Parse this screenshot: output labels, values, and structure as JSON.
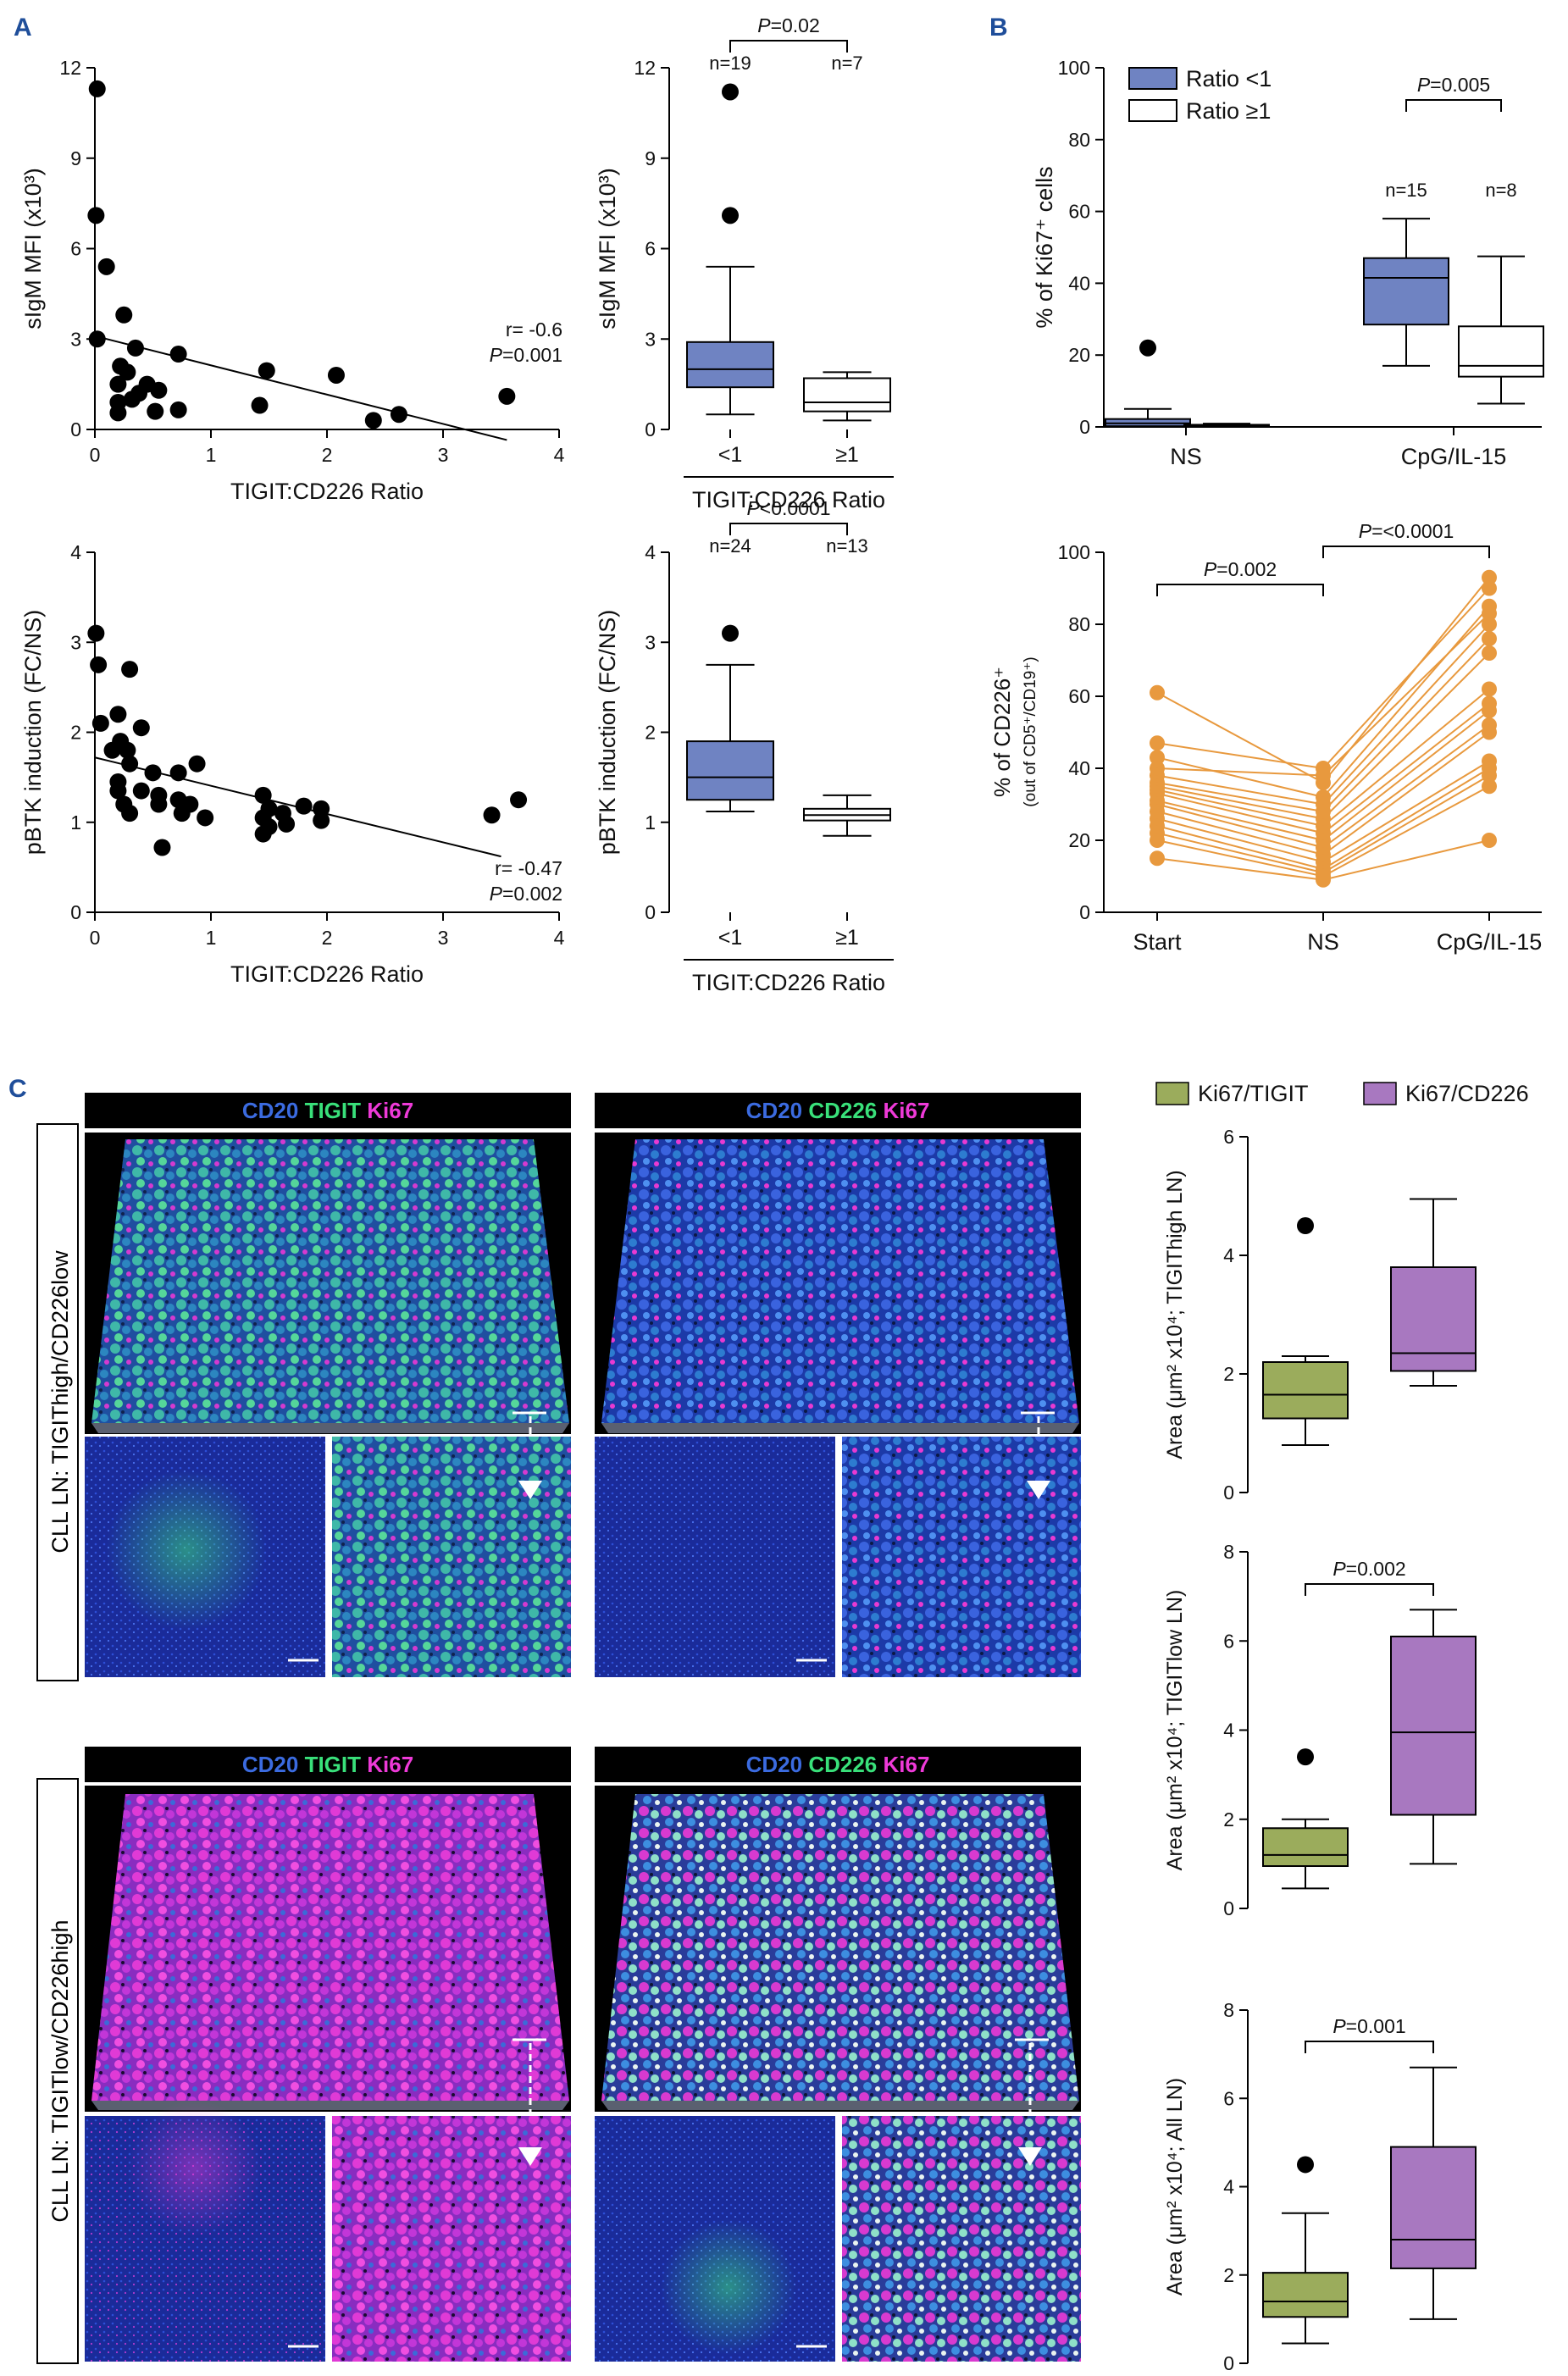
{
  "colors": {
    "panel_label": "#1f4e9a",
    "lt1_fill": "#6f83c2",
    "ge1_fill": "#ffffff",
    "orange": "#e8993e",
    "green_fill": "#9bac5c",
    "purple_fill": "#a878c0",
    "cd20": "#3b6be0",
    "tigit": "#39e07a",
    "ki67": "#ee3ad8"
  },
  "panels": {
    "a": "A",
    "b": "B",
    "c": "C"
  },
  "chart_data": [
    {
      "id": "a1",
      "type": "scatter",
      "xlabel": "TIGIT:CD226 Ratio",
      "ylabel": "sIgM MFI (x10³)",
      "xlim": [
        0,
        4
      ],
      "ylim": [
        0,
        12
      ],
      "xticks": [
        "0",
        "1",
        "2",
        "3",
        "4"
      ],
      "yticks": [
        "0",
        "3",
        "6",
        "9",
        "12"
      ],
      "points": [
        [
          0.02,
          11.3
        ],
        [
          0.01,
          7.1
        ],
        [
          0.1,
          5.4
        ],
        [
          0.02,
          3.0
        ],
        [
          0.25,
          3.8
        ],
        [
          0.35,
          2.7
        ],
        [
          0.22,
          2.1
        ],
        [
          0.28,
          1.9
        ],
        [
          0.2,
          1.5
        ],
        [
          0.45,
          1.5
        ],
        [
          0.38,
          1.2
        ],
        [
          0.55,
          1.3
        ],
        [
          0.2,
          0.9
        ],
        [
          0.32,
          1.0
        ],
        [
          0.2,
          0.55
        ],
        [
          0.52,
          0.6
        ],
        [
          0.72,
          2.5
        ],
        [
          0.72,
          0.65
        ],
        [
          1.48,
          1.95
        ],
        [
          1.42,
          0.8
        ],
        [
          2.08,
          1.8
        ],
        [
          2.4,
          0.3
        ],
        [
          2.62,
          0.5
        ],
        [
          3.55,
          1.1
        ]
      ],
      "fit": [
        [
          0,
          3.1
        ],
        [
          3.55,
          -0.35
        ]
      ],
      "annotations": [
        "r= -0.6",
        "P=0.001"
      ]
    },
    {
      "id": "a2",
      "type": "box",
      "xlabel": "TIGIT:CD226 Ratio",
      "ylabel": "sIgM MFI (x10³)",
      "ylim": [
        0,
        12
      ],
      "yticks": [
        "0",
        "3",
        "6",
        "9",
        "12"
      ],
      "categories": [
        "<1",
        "≥1"
      ],
      "n_labels": [
        "n=19",
        "n=7"
      ],
      "pvalue": "P=0.02",
      "boxes": [
        {
          "whisker_low": 0.5,
          "q1": 1.4,
          "median": 2.0,
          "q3": 2.9,
          "whisker_high": 5.4,
          "outliers": [
            7.1,
            11.2
          ]
        },
        {
          "whisker_low": 0.3,
          "q1": 0.6,
          "median": 0.9,
          "q3": 1.7,
          "whisker_high": 1.9,
          "outliers": []
        }
      ]
    },
    {
      "id": "a3",
      "type": "scatter",
      "xlabel": "TIGIT:CD226 Ratio",
      "ylabel": "pBTK induction (FC/NS)",
      "xlim": [
        0,
        4
      ],
      "ylim": [
        0,
        4
      ],
      "xticks": [
        "0",
        "1",
        "2",
        "3",
        "4"
      ],
      "yticks": [
        "0",
        "1",
        "2",
        "3",
        "4"
      ],
      "points": [
        [
          0.01,
          3.1
        ],
        [
          0.03,
          2.75
        ],
        [
          0.05,
          2.1
        ],
        [
          0.3,
          2.7
        ],
        [
          0.2,
          2.2
        ],
        [
          0.4,
          2.05
        ],
        [
          0.22,
          1.9
        ],
        [
          0.28,
          1.8
        ],
        [
          0.3,
          1.65
        ],
        [
          0.15,
          1.8
        ],
        [
          0.2,
          1.45
        ],
        [
          0.2,
          1.35
        ],
        [
          0.25,
          1.2
        ],
        [
          0.3,
          1.1
        ],
        [
          0.4,
          1.35
        ],
        [
          0.5,
          1.55
        ],
        [
          0.55,
          1.3
        ],
        [
          0.55,
          1.2
        ],
        [
          0.72,
          1.55
        ],
        [
          0.72,
          1.25
        ],
        [
          0.82,
          1.2
        ],
        [
          0.75,
          1.1
        ],
        [
          0.88,
          1.65
        ],
        [
          0.95,
          1.05
        ],
        [
          0.58,
          0.72
        ],
        [
          1.45,
          1.3
        ],
        [
          1.5,
          1.15
        ],
        [
          1.45,
          1.05
        ],
        [
          1.5,
          0.95
        ],
        [
          1.45,
          0.87
        ],
        [
          1.62,
          1.1
        ],
        [
          1.65,
          0.98
        ],
        [
          1.8,
          1.18
        ],
        [
          1.95,
          1.15
        ],
        [
          1.95,
          1.02
        ],
        [
          3.42,
          1.08
        ],
        [
          3.65,
          1.25
        ]
      ],
      "fit": [
        [
          0,
          1.72
        ],
        [
          3.5,
          0.62
        ]
      ],
      "annotations": [
        "r= -0.47",
        "P=0.002"
      ]
    },
    {
      "id": "a4",
      "type": "box",
      "xlabel": "TIGIT:CD226 Ratio",
      "ylabel": "pBTK induction (FC/NS)",
      "ylim": [
        0,
        4
      ],
      "yticks": [
        "0",
        "1",
        "2",
        "3",
        "4"
      ],
      "categories": [
        "<1",
        "≥1"
      ],
      "n_labels": [
        "n=24",
        "n=13"
      ],
      "pvalue": "P<0.0001",
      "boxes": [
        {
          "whisker_low": 1.12,
          "q1": 1.25,
          "median": 1.5,
          "q3": 1.9,
          "whisker_high": 2.75,
          "outliers": [
            3.1
          ]
        },
        {
          "whisker_low": 0.85,
          "q1": 1.02,
          "median": 1.08,
          "q3": 1.15,
          "whisker_high": 1.3,
          "outliers": []
        }
      ]
    },
    {
      "id": "b1",
      "type": "box",
      "ylabel": "% of Ki67⁺ cells",
      "ylim": [
        0,
        100
      ],
      "yticks": [
        "0",
        "20",
        "40",
        "60",
        "80",
        "100"
      ],
      "categories": [
        "NS",
        "CpG/IL-15"
      ],
      "legend": [
        "Ratio <1",
        "Ratio ≥1"
      ],
      "n_labels": [
        "n=15",
        "n=8"
      ],
      "pvalue": "P=0.005",
      "boxes": [
        {
          "group": "NS",
          "series": "Ratio <1",
          "whisker_low": 0,
          "q1": 0.2,
          "median": 1.0,
          "q3": 2.2,
          "whisker_high": 5.0,
          "outliers": [
            22
          ]
        },
        {
          "group": "NS",
          "series": "Ratio ≥1",
          "whisker_low": 0,
          "q1": 0.1,
          "median": 0.3,
          "q3": 0.6,
          "whisker_high": 0.9,
          "outliers": []
        },
        {
          "group": "CpG/IL-15",
          "series": "Ratio <1",
          "whisker_low": 17,
          "q1": 28.5,
          "median": 41.5,
          "q3": 47,
          "whisker_high": 58,
          "outliers": []
        },
        {
          "group": "CpG/IL-15",
          "series": "Ratio ≥1",
          "whisker_low": 6.5,
          "q1": 14,
          "median": 17,
          "q3": 28,
          "whisker_high": 47.5,
          "outliers": []
        }
      ]
    },
    {
      "id": "b2",
      "type": "line",
      "ylabel": "% of CD226⁺",
      "ylabel2": "(out of CD5⁺/CD19⁺)",
      "ylim": [
        0,
        100
      ],
      "yticks": [
        "0",
        "20",
        "40",
        "60",
        "80",
        "100"
      ],
      "categories": [
        "Start",
        "NS",
        "CpG/IL-15"
      ],
      "pvalues": [
        "P=0.002",
        "P=<0.0001"
      ],
      "series": [
        [
          61,
          36,
          93
        ],
        [
          47,
          40,
          90
        ],
        [
          43,
          32,
          85
        ],
        [
          40,
          38,
          83
        ],
        [
          38,
          30,
          80
        ],
        [
          36,
          28,
          76
        ],
        [
          35,
          26,
          72
        ],
        [
          34,
          24,
          62
        ],
        [
          33,
          22,
          58
        ],
        [
          31,
          20,
          56
        ],
        [
          30,
          18,
          52
        ],
        [
          28,
          16,
          50
        ],
        [
          26,
          14,
          42
        ],
        [
          24,
          12,
          40
        ],
        [
          22,
          11,
          38
        ],
        [
          20,
          10,
          35
        ],
        [
          15,
          9,
          20
        ]
      ]
    },
    {
      "id": "c1",
      "type": "box",
      "ylabel": "Area (μm² x10⁴; TIGIThigh LN)",
      "ylim": [
        0,
        6
      ],
      "yticks": [
        "0",
        "2",
        "4",
        "6"
      ],
      "categories": [
        "Ki67/TIGIT",
        "Ki67/CD226"
      ],
      "pvalue": "",
      "boxes": [
        {
          "whisker_low": 0.8,
          "q1": 1.25,
          "median": 1.65,
          "q3": 2.2,
          "whisker_high": 2.3,
          "outliers": [
            4.5
          ]
        },
        {
          "whisker_low": 1.8,
          "q1": 2.05,
          "median": 2.35,
          "q3": 3.8,
          "whisker_high": 4.95,
          "outliers": []
        }
      ]
    },
    {
      "id": "c2",
      "type": "box",
      "ylabel": "Area (μm² x10⁴; TIGITlow LN)",
      "ylim": [
        0,
        8
      ],
      "yticks": [
        "0",
        "2",
        "4",
        "6",
        "8"
      ],
      "categories": [
        "Ki67/TIGIT",
        "Ki67/CD226"
      ],
      "pvalue": "P=0.002",
      "boxes": [
        {
          "whisker_low": 0.45,
          "q1": 0.95,
          "median": 1.2,
          "q3": 1.8,
          "whisker_high": 2.0,
          "outliers": [
            3.4
          ]
        },
        {
          "whisker_low": 1.0,
          "q1": 2.1,
          "median": 3.95,
          "q3": 6.1,
          "whisker_high": 6.7,
          "outliers": []
        }
      ]
    },
    {
      "id": "c3",
      "type": "box",
      "ylabel": "Area (μm² x10⁴; All LN)",
      "ylim": [
        0,
        8
      ],
      "yticks": [
        "0",
        "2",
        "4",
        "6",
        "8"
      ],
      "categories": [
        "Ki67/TIGIT",
        "Ki67/CD226"
      ],
      "pvalue": "P=0.001",
      "boxes": [
        {
          "whisker_low": 0.45,
          "q1": 1.05,
          "median": 1.4,
          "q3": 2.05,
          "whisker_high": 3.4,
          "outliers": [
            4.5
          ]
        },
        {
          "whisker_low": 1.0,
          "q1": 2.15,
          "median": 2.8,
          "q3": 4.9,
          "whisker_high": 6.7,
          "outliers": []
        }
      ]
    }
  ],
  "legend_c": [
    "Ki67/TIGIT",
    "Ki67/CD226"
  ],
  "microscopy": {
    "row_labels": [
      "CLL LN: TIGIThigh/CD226low",
      "CLL LN: TIGITlow/CD226high"
    ],
    "headers": [
      [
        "CD20",
        "TIGIT",
        "Ki67"
      ],
      [
        "CD20",
        "CD226",
        "Ki67"
      ],
      [
        "CD20",
        "TIGIT",
        "Ki67"
      ],
      [
        "CD20",
        "CD226",
        "Ki67"
      ]
    ]
  }
}
